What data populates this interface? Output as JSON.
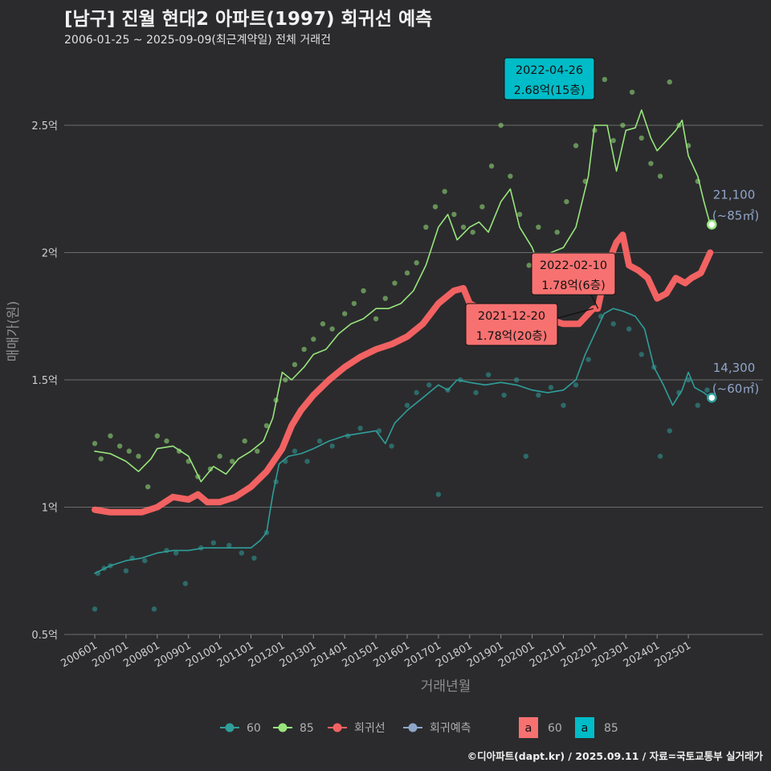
{
  "title": "[남구] 진월 현대2 아파트(1997) 회귀선 예측",
  "subtitle": "2006-01-25 ~ 2025-09-09(최근계약일) 전체 거래건",
  "caption": "©디아파트(dapt.kr) / 2025.09.11 / 자료=국토교통부 실거래가",
  "chart_data": {
    "type": "line",
    "xlabel": "거래년월",
    "ylabel": "매매가(원)",
    "ylim": [
      0.5,
      2.7
    ],
    "y_ticks": [
      0.5,
      1,
      1.5,
      2,
      2.5
    ],
    "y_tick_labels": [
      "0.5억",
      "1억",
      "1.5억",
      "2억",
      "2.5억"
    ],
    "x_tick_labels": [
      "200601",
      "200701",
      "200801",
      "200901",
      "201001",
      "201101",
      "201201",
      "201301",
      "201401",
      "201501",
      "201601",
      "201701",
      "201801",
      "201901",
      "202001",
      "202101",
      "202201",
      "202301",
      "202401",
      "202501"
    ],
    "x_range": [
      2006.0,
      2025.75
    ],
    "grid": true,
    "legend_position": "bottom",
    "legend": [
      {
        "name": "60",
        "color": "#2f9e9a"
      },
      {
        "name": "85",
        "color": "#98e57c"
      },
      {
        "name": "회귀선",
        "color": "#f26262"
      },
      {
        "name": "회귀예측",
        "color": "#8fa5c8"
      }
    ],
    "label_legend": [
      {
        "text": "a",
        "name": "60",
        "fill": "#f87171"
      },
      {
        "text": "a",
        "name": "85",
        "fill": "#00bcc8"
      }
    ],
    "series": [
      {
        "name": "60",
        "color": "#2f9e9a",
        "points": [
          [
            2006.0,
            0.74
          ],
          [
            2006.5,
            0.77
          ],
          [
            2007.0,
            0.79
          ],
          [
            2007.5,
            0.8
          ],
          [
            2008.0,
            0.82
          ],
          [
            2008.5,
            0.83
          ],
          [
            2009.0,
            0.83
          ],
          [
            2009.5,
            0.84
          ],
          [
            2010.0,
            0.84
          ],
          [
            2010.5,
            0.84
          ],
          [
            2011.0,
            0.84
          ],
          [
            2011.3,
            0.87
          ],
          [
            2011.5,
            0.9
          ],
          [
            2011.7,
            1.05
          ],
          [
            2011.9,
            1.17
          ],
          [
            2012.2,
            1.2
          ],
          [
            2012.6,
            1.21
          ],
          [
            2013.0,
            1.23
          ],
          [
            2013.5,
            1.26
          ],
          [
            2014.0,
            1.28
          ],
          [
            2014.5,
            1.29
          ],
          [
            2015.0,
            1.3
          ],
          [
            2015.3,
            1.25
          ],
          [
            2015.6,
            1.33
          ],
          [
            2016.0,
            1.38
          ],
          [
            2016.5,
            1.43
          ],
          [
            2017.0,
            1.48
          ],
          [
            2017.3,
            1.46
          ],
          [
            2017.6,
            1.5
          ],
          [
            2018.0,
            1.49
          ],
          [
            2018.5,
            1.48
          ],
          [
            2019.0,
            1.49
          ],
          [
            2019.5,
            1.48
          ],
          [
            2020.0,
            1.46
          ],
          [
            2020.5,
            1.45
          ],
          [
            2021.0,
            1.46
          ],
          [
            2021.4,
            1.5
          ],
          [
            2021.7,
            1.6
          ],
          [
            2022.0,
            1.68
          ],
          [
            2022.3,
            1.76
          ],
          [
            2022.6,
            1.78
          ],
          [
            2022.9,
            1.77
          ],
          [
            2023.3,
            1.75
          ],
          [
            2023.6,
            1.7
          ],
          [
            2023.9,
            1.55
          ],
          [
            2024.2,
            1.48
          ],
          [
            2024.5,
            1.4
          ],
          [
            2024.8,
            1.46
          ],
          [
            2025.0,
            1.53
          ],
          [
            2025.2,
            1.47
          ],
          [
            2025.5,
            1.45
          ],
          [
            2025.7,
            1.43
          ]
        ]
      },
      {
        "name": "85",
        "color": "#98e57c",
        "points": [
          [
            2006.0,
            1.22
          ],
          [
            2006.5,
            1.21
          ],
          [
            2007.0,
            1.18
          ],
          [
            2007.4,
            1.14
          ],
          [
            2007.8,
            1.19
          ],
          [
            2008.0,
            1.23
          ],
          [
            2008.5,
            1.24
          ],
          [
            2009.0,
            1.2
          ],
          [
            2009.4,
            1.1
          ],
          [
            2009.8,
            1.16
          ],
          [
            2010.2,
            1.13
          ],
          [
            2010.6,
            1.19
          ],
          [
            2011.0,
            1.22
          ],
          [
            2011.4,
            1.26
          ],
          [
            2011.7,
            1.35
          ],
          [
            2012.0,
            1.53
          ],
          [
            2012.3,
            1.5
          ],
          [
            2012.7,
            1.55
          ],
          [
            2013.0,
            1.6
          ],
          [
            2013.4,
            1.62
          ],
          [
            2013.8,
            1.68
          ],
          [
            2014.2,
            1.72
          ],
          [
            2014.6,
            1.74
          ],
          [
            2015.0,
            1.78
          ],
          [
            2015.4,
            1.78
          ],
          [
            2015.8,
            1.8
          ],
          [
            2016.2,
            1.85
          ],
          [
            2016.6,
            1.95
          ],
          [
            2017.0,
            2.1
          ],
          [
            2017.3,
            2.15
          ],
          [
            2017.6,
            2.05
          ],
          [
            2018.0,
            2.1
          ],
          [
            2018.3,
            2.12
          ],
          [
            2018.6,
            2.08
          ],
          [
            2019.0,
            2.2
          ],
          [
            2019.3,
            2.25
          ],
          [
            2019.6,
            2.1
          ],
          [
            2020.0,
            2.02
          ],
          [
            2020.3,
            1.92
          ],
          [
            2020.6,
            2.0
          ],
          [
            2021.0,
            2.02
          ],
          [
            2021.4,
            2.1
          ],
          [
            2021.8,
            2.3
          ],
          [
            2022.0,
            2.5
          ],
          [
            2022.4,
            2.5
          ],
          [
            2022.7,
            2.32
          ],
          [
            2023.0,
            2.48
          ],
          [
            2023.3,
            2.49
          ],
          [
            2023.5,
            2.56
          ],
          [
            2023.8,
            2.45
          ],
          [
            2024.0,
            2.4
          ],
          [
            2024.3,
            2.44
          ],
          [
            2024.6,
            2.48
          ],
          [
            2024.8,
            2.52
          ],
          [
            2025.0,
            2.38
          ],
          [
            2025.3,
            2.3
          ],
          [
            2025.5,
            2.2
          ],
          [
            2025.7,
            2.11
          ]
        ]
      },
      {
        "name": "회귀선",
        "color": "#f26262",
        "points": [
          [
            2006.0,
            0.99
          ],
          [
            2006.5,
            0.98
          ],
          [
            2007.0,
            0.98
          ],
          [
            2007.5,
            0.98
          ],
          [
            2008.0,
            1.0
          ],
          [
            2008.5,
            1.04
          ],
          [
            2009.0,
            1.03
          ],
          [
            2009.3,
            1.05
          ],
          [
            2009.6,
            1.02
          ],
          [
            2010.0,
            1.02
          ],
          [
            2010.5,
            1.04
          ],
          [
            2011.0,
            1.08
          ],
          [
            2011.5,
            1.14
          ],
          [
            2012.0,
            1.23
          ],
          [
            2012.3,
            1.32
          ],
          [
            2012.6,
            1.38
          ],
          [
            2013.0,
            1.44
          ],
          [
            2013.5,
            1.5
          ],
          [
            2014.0,
            1.55
          ],
          [
            2014.5,
            1.59
          ],
          [
            2015.0,
            1.62
          ],
          [
            2015.5,
            1.64
          ],
          [
            2016.0,
            1.67
          ],
          [
            2016.5,
            1.72
          ],
          [
            2017.0,
            1.8
          ],
          [
            2017.5,
            1.85
          ],
          [
            2017.8,
            1.86
          ],
          [
            2018.0,
            1.8
          ],
          [
            2018.5,
            1.77
          ],
          [
            2019.0,
            1.76
          ],
          [
            2019.5,
            1.76
          ],
          [
            2020.0,
            1.76
          ],
          [
            2020.5,
            1.74
          ],
          [
            2021.0,
            1.72
          ],
          [
            2021.5,
            1.72
          ],
          [
            2021.96,
            1.78
          ],
          [
            2022.1,
            1.78
          ],
          [
            2022.4,
            1.95
          ],
          [
            2022.7,
            2.04
          ],
          [
            2022.9,
            2.07
          ],
          [
            2023.1,
            1.95
          ],
          [
            2023.4,
            1.93
          ],
          [
            2023.7,
            1.9
          ],
          [
            2024.0,
            1.82
          ],
          [
            2024.3,
            1.84
          ],
          [
            2024.6,
            1.9
          ],
          [
            2024.9,
            1.88
          ],
          [
            2025.1,
            1.9
          ],
          [
            2025.4,
            1.92
          ],
          [
            2025.7,
            2.0
          ]
        ]
      }
    ],
    "scatter": [
      {
        "name": "60",
        "color": "#2f9e9a",
        "points": [
          [
            2006.0,
            0.6
          ],
          [
            2006.1,
            0.74
          ],
          [
            2006.3,
            0.76
          ],
          [
            2006.5,
            0.77
          ],
          [
            2007.0,
            0.75
          ],
          [
            2007.2,
            0.8
          ],
          [
            2007.6,
            0.79
          ],
          [
            2007.9,
            0.6
          ],
          [
            2008.3,
            0.83
          ],
          [
            2008.6,
            0.82
          ],
          [
            2008.9,
            0.7
          ],
          [
            2009.4,
            0.84
          ],
          [
            2009.8,
            0.86
          ],
          [
            2010.3,
            0.85
          ],
          [
            2010.7,
            0.82
          ],
          [
            2011.1,
            0.8
          ],
          [
            2011.5,
            0.9
          ],
          [
            2011.8,
            1.1
          ],
          [
            2012.1,
            1.18
          ],
          [
            2012.4,
            1.22
          ],
          [
            2012.8,
            1.18
          ],
          [
            2013.2,
            1.26
          ],
          [
            2013.6,
            1.24
          ],
          [
            2014.1,
            1.28
          ],
          [
            2014.5,
            1.31
          ],
          [
            2015.1,
            1.3
          ],
          [
            2015.5,
            1.24
          ],
          [
            2016.0,
            1.4
          ],
          [
            2016.3,
            1.45
          ],
          [
            2016.7,
            1.48
          ],
          [
            2017.0,
            1.05
          ],
          [
            2017.3,
            1.46
          ],
          [
            2017.7,
            1.5
          ],
          [
            2018.2,
            1.45
          ],
          [
            2018.6,
            1.52
          ],
          [
            2019.1,
            1.44
          ],
          [
            2019.5,
            1.5
          ],
          [
            2019.8,
            1.2
          ],
          [
            2020.2,
            1.44
          ],
          [
            2020.6,
            1.47
          ],
          [
            2021.0,
            1.4
          ],
          [
            2021.4,
            1.48
          ],
          [
            2021.8,
            1.58
          ],
          [
            2022.2,
            1.75
          ],
          [
            2022.6,
            1.72
          ],
          [
            2023.1,
            1.7
          ],
          [
            2023.5,
            1.6
          ],
          [
            2023.9,
            1.55
          ],
          [
            2024.1,
            1.2
          ],
          [
            2024.4,
            1.3
          ],
          [
            2024.7,
            1.45
          ],
          [
            2025.0,
            1.5
          ],
          [
            2025.3,
            1.4
          ],
          [
            2025.6,
            1.46
          ]
        ]
      },
      {
        "name": "85",
        "color": "#98e57c",
        "points": [
          [
            2006.0,
            1.25
          ],
          [
            2006.2,
            1.19
          ],
          [
            2006.5,
            1.28
          ],
          [
            2006.8,
            1.24
          ],
          [
            2007.1,
            1.22
          ],
          [
            2007.4,
            1.2
          ],
          [
            2007.7,
            1.08
          ],
          [
            2008.0,
            1.28
          ],
          [
            2008.3,
            1.26
          ],
          [
            2008.7,
            1.22
          ],
          [
            2009.0,
            1.18
          ],
          [
            2009.3,
            1.12
          ],
          [
            2009.7,
            1.15
          ],
          [
            2010.0,
            1.2
          ],
          [
            2010.4,
            1.18
          ],
          [
            2010.8,
            1.26
          ],
          [
            2011.2,
            1.22
          ],
          [
            2011.5,
            1.32
          ],
          [
            2011.8,
            1.42
          ],
          [
            2012.1,
            1.5
          ],
          [
            2012.4,
            1.56
          ],
          [
            2012.7,
            1.62
          ],
          [
            2013.0,
            1.66
          ],
          [
            2013.3,
            1.72
          ],
          [
            2013.6,
            1.7
          ],
          [
            2014.0,
            1.76
          ],
          [
            2014.3,
            1.8
          ],
          [
            2014.6,
            1.85
          ],
          [
            2015.0,
            1.74
          ],
          [
            2015.3,
            1.82
          ],
          [
            2015.6,
            1.88
          ],
          [
            2016.0,
            1.92
          ],
          [
            2016.3,
            1.96
          ],
          [
            2016.6,
            2.1
          ],
          [
            2016.9,
            2.18
          ],
          [
            2017.2,
            2.24
          ],
          [
            2017.5,
            2.15
          ],
          [
            2017.8,
            2.1
          ],
          [
            2018.1,
            2.08
          ],
          [
            2018.4,
            2.18
          ],
          [
            2018.7,
            2.34
          ],
          [
            2019.0,
            2.5
          ],
          [
            2019.3,
            2.3
          ],
          [
            2019.6,
            2.15
          ],
          [
            2019.9,
            1.95
          ],
          [
            2020.2,
            2.1
          ],
          [
            2020.5,
            1.98
          ],
          [
            2020.8,
            2.08
          ],
          [
            2021.1,
            2.2
          ],
          [
            2021.4,
            2.42
          ],
          [
            2021.7,
            2.28
          ],
          [
            2022.0,
            2.48
          ],
          [
            2022.32,
            2.68
          ],
          [
            2022.6,
            2.44
          ],
          [
            2022.9,
            2.5
          ],
          [
            2023.2,
            2.63
          ],
          [
            2023.5,
            2.45
          ],
          [
            2023.8,
            2.35
          ],
          [
            2024.1,
            2.3
          ],
          [
            2024.4,
            2.67
          ],
          [
            2024.7,
            2.5
          ],
          [
            2025.0,
            2.42
          ],
          [
            2025.3,
            2.28
          ]
        ]
      }
    ],
    "end_labels": [
      {
        "series": "85",
        "value": 2.11,
        "line1": "21,100",
        "line2": "(~85㎡)",
        "color": "#98e57c"
      },
      {
        "series": "60",
        "value": 1.43,
        "line1": "14,300",
        "line2": "(~60㎡)",
        "color": "#2f9e9a"
      }
    ],
    "annotations": [
      {
        "date": "2022-04-26",
        "value": "2.68억(15층)",
        "x": 2022.32,
        "y": 2.68,
        "fill": "#00bcc8"
      },
      {
        "date": "2022-02-10",
        "value": "1.78억(6층)",
        "x": 2022.11,
        "y": 1.78,
        "fill": "#f87171"
      },
      {
        "date": "2021-12-20",
        "value": "1.78억(20층)",
        "x": 2021.96,
        "y": 1.78,
        "fill": "#f87171"
      }
    ]
  }
}
